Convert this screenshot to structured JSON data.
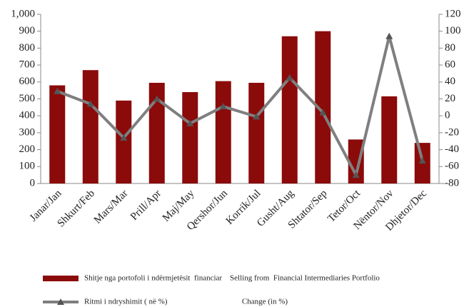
{
  "chart_data": {
    "type": "bar_line",
    "categories": [
      "Janar/Jan",
      "Shkurt/Feb",
      "Mars/Mar",
      "Prill/Apr",
      "Maj/May",
      "Qershor/Jun",
      "Korrik/Jul",
      "Gusht/Aug",
      "Shtator/Sep",
      "Tetor/Oct",
      "Nëntor/Nov",
      "Dhjetor/Dec"
    ],
    "series": [
      {
        "name": "Shitje nga portofoli i ndërmjetësit  financiar    Selling from  Financial Intermediaries Portfolio",
        "type": "bar",
        "color": "#8b0a0a",
        "values": [
          580,
          670,
          490,
          595,
          540,
          605,
          595,
          870,
          900,
          260,
          515,
          240
        ]
      },
      {
        "name": "Ritmi i ndryshimit ( në %)                                      Change (in %)",
        "type": "line",
        "color": "#7f7f7f",
        "axis": "y2",
        "values": [
          29,
          14,
          -26,
          20,
          -9,
          11,
          -1,
          45,
          4,
          -70,
          94,
          -53
        ]
      }
    ],
    "ylim": [
      0,
      1000
    ],
    "yticks": [
      0,
      100,
      200,
      300,
      400,
      500,
      600,
      700,
      800,
      900,
      {
        "value": 1000,
        "label": "1,000"
      }
    ],
    "y2lim": [
      -80,
      120
    ],
    "y2ticks": [
      -80,
      -60,
      -40,
      -20,
      0,
      20,
      40,
      60,
      80,
      100,
      120
    ],
    "grid": false
  }
}
